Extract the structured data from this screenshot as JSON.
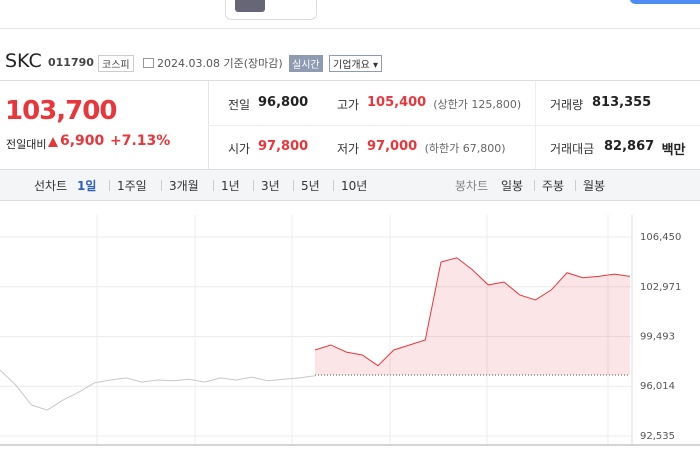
{
  "stock": {
    "name": "SKC",
    "code": "011790",
    "market": "코스피",
    "date": "2024.03.08 기준(장마감)",
    "realtime": "실시간",
    "overview": "기업개요"
  },
  "price": {
    "current": "103,700",
    "change_label": "전일대비",
    "change": "6,900",
    "change_pct": "+7.13%"
  },
  "stats": [
    {
      "label": "전일",
      "value": "96,800"
    },
    {
      "label": "고가",
      "value": "105,400",
      "note": "(상한가 125,800)"
    },
    {
      "label": "거래량",
      "value": "813,355"
    },
    {
      "label": "시가",
      "value": "97,800"
    },
    {
      "label": "저가",
      "value": "97,000",
      "note": "(하한가 67,800)"
    },
    {
      "label": "거래대금",
      "value": "82,867",
      "unit": "백만"
    }
  ],
  "toolbar": {
    "line_label": "선차트",
    "line_periods": [
      "1일",
      "1주일",
      "3개월",
      "1년",
      "3년",
      "5년",
      "10년"
    ],
    "candle_label": "봉차트",
    "candle_periods": [
      "일봉",
      "주봉",
      "월봉"
    ]
  },
  "chart_data": {
    "type": "line",
    "categories": [
      null,
      null,
      null,
      null,
      null,
      null,
      null,
      null,
      null,
      null,
      null,
      null,
      null,
      null,
      null,
      null,
      null,
      null,
      null,
      null,
      null,
      null,
      null,
      null,
      null,
      null,
      null,
      null,
      null,
      null,
      null,
      null,
      null,
      null,
      null,
      null,
      null,
      null,
      null,
      null,
      null
    ],
    "series": [
      {
        "color": "#c8c8c8",
        "values": [
          97150,
          96100,
          94700,
          94350,
          95050,
          95600,
          96250,
          96450,
          96600,
          96300,
          96450,
          96400,
          96500,
          96300,
          96600,
          96450,
          96650,
          96400,
          96500,
          96600,
          96750,
          null,
          null,
          null,
          null,
          null,
          null,
          null,
          null,
          null,
          null,
          null,
          null,
          null,
          null,
          null,
          null,
          null,
          null,
          null,
          null
        ]
      },
      {
        "color": "#e8363a",
        "values": [
          null,
          null,
          null,
          null,
          null,
          null,
          null,
          null,
          null,
          null,
          null,
          null,
          null,
          null,
          null,
          null,
          null,
          null,
          null,
          null,
          98550,
          98900,
          98400,
          98200,
          97450,
          98550,
          98900,
          99250,
          104700,
          105000,
          104150,
          103100,
          103300,
          102400,
          102050,
          102750,
          103950,
          103600,
          103700,
          103850,
          103700
        ]
      }
    ],
    "baseline": 96800,
    "ylim": [
      92535,
      106450
    ],
    "yticks": [
      {
        "value": 92535,
        "label": "92,535"
      },
      {
        "value": 96014,
        "label": "96,014"
      },
      {
        "value": 99493,
        "label": "99,493"
      },
      {
        "value": 102971,
        "label": "102,971"
      },
      {
        "value": 106450,
        "label": "106,450"
      }
    ],
    "grid": true
  }
}
